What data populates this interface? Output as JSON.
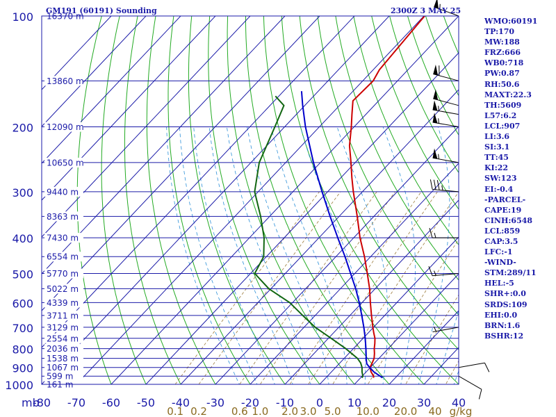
{
  "header": {
    "station": "GM191 (60191) Sounding",
    "time": "2300Z  3 MAY 25"
  },
  "stats": [
    "WMO:60191",
    "TP:170",
    "MW:188",
    "FRZ:666",
    "WB0:718",
    "PW:0.87",
    "RH:50.6",
    "MAXT:22.3",
    "TH:5609",
    "L57:6.2",
    "LCL:907",
    "LI:3.6",
    "SI:3.1",
    "TT:45",
    "KI:22",
    "SW:123",
    "EI:-0.4",
    "-PARCEL-",
    "CAPE:19",
    "CINH:6548",
    "LCL:859",
    "CAP:3.5",
    "LFC:-1",
    "-WIND-",
    "STM:289/11",
    "HEL:-5",
    "SHR+:0.0",
    "SRDS:109",
    "EHI:0.0",
    "BRN:1.6",
    "BSHR:12"
  ],
  "colors": {
    "isobar": "#1a1aa8",
    "isotherm": "#1a1aa8",
    "dry_adiabat": "#22aa22",
    "moist_adiabat": "#2a8fd8",
    "mixing_ratio": "#9a7a3a",
    "temperature": "#cc0000",
    "dewpoint": "#116611",
    "parcel": "#0000cc",
    "text": "#1a1aa8"
  },
  "chart_data": {
    "type": "line",
    "title": "",
    "xlabel": "",
    "ylabel": "mb",
    "y_scale": "log-pressure",
    "ylim": [
      1000,
      100
    ],
    "xlim_at_1000mb": [
      -80,
      40
    ],
    "pressure_ticks": [
      100,
      200,
      300,
      400,
      500,
      600,
      700,
      800,
      900,
      1000
    ],
    "temperature_ticks": [
      -80,
      -70,
      -60,
      -50,
      -40,
      -30,
      -20,
      -10,
      0,
      10,
      20,
      30,
      40
    ],
    "temperature_tick_labels": [
      "-80",
      "-70",
      "-60",
      "-50",
      "-40",
      "-30",
      "-20",
      "-10",
      "0",
      "10",
      "20",
      "30",
      "40"
    ],
    "height_levels": [
      {
        "p": 100,
        "label": "16370 m"
      },
      {
        "p": 150,
        "label": "13860 m"
      },
      {
        "p": 200,
        "label": "12090 m"
      },
      {
        "p": 250,
        "label": "10650 m"
      },
      {
        "p": 300,
        "label": "9440 m"
      },
      {
        "p": 350,
        "label": "8363 m"
      },
      {
        "p": 400,
        "label": "7430 m"
      },
      {
        "p": 450,
        "label": "6554 m"
      },
      {
        "p": 500,
        "label": "5770 m"
      },
      {
        "p": 550,
        "label": "5022 m"
      },
      {
        "p": 600,
        "label": "4339 m"
      },
      {
        "p": 650,
        "label": "3711 m"
      },
      {
        "p": 700,
        "label": "3129 m"
      },
      {
        "p": 750,
        "label": "2554 m"
      },
      {
        "p": 800,
        "label": "2036 m"
      },
      {
        "p": 850,
        "label": "1538 m"
      },
      {
        "p": 900,
        "label": "1067 m"
      },
      {
        "p": 950,
        "label": "599 m"
      },
      {
        "p": 1000,
        "label": "161 m"
      }
    ],
    "mixing_ratio_labels": [
      "0.1",
      "0.2",
      "0.6",
      "1.0",
      "2.0",
      "3.0",
      "5.0",
      "10.0",
      "20.0",
      "40",
      "g/kg"
    ],
    "mixing_ratio_values": [
      0.1,
      0.2,
      0.6,
      1.0,
      2.0,
      3.0,
      5.0,
      10.0,
      20.0,
      40.0
    ],
    "series": [
      {
        "key": "temperature",
        "points": [
          [
            960,
            13.7
          ],
          [
            950,
            13.3
          ],
          [
            925,
            11.4
          ],
          [
            900,
            9.9
          ],
          [
            875,
            9.3
          ],
          [
            850,
            8.6
          ],
          [
            825,
            7.4
          ],
          [
            800,
            6.0
          ],
          [
            775,
            4.8
          ],
          [
            750,
            3.4
          ],
          [
            725,
            1.6
          ],
          [
            700,
            -0.2
          ],
          [
            650,
            -3.8
          ],
          [
            600,
            -7.6
          ],
          [
            550,
            -11.6
          ],
          [
            500,
            -16.4
          ],
          [
            450,
            -21.8
          ],
          [
            400,
            -28.2
          ],
          [
            350,
            -34.8
          ],
          [
            300,
            -42.6
          ],
          [
            275,
            -46.8
          ],
          [
            250,
            -51.2
          ],
          [
            225,
            -56.2
          ],
          [
            200,
            -60.8
          ],
          [
            185,
            -64.0
          ],
          [
            170,
            -67.4
          ],
          [
            150,
            -67.0
          ],
          [
            140,
            -68.2
          ],
          [
            100,
            -69.8
          ]
        ]
      },
      {
        "key": "dewpoint",
        "points": [
          [
            960,
            10.4
          ],
          [
            950,
            10.2
          ],
          [
            925,
            8.8
          ],
          [
            900,
            7.6
          ],
          [
            875,
            6.0
          ],
          [
            850,
            3.8
          ],
          [
            800,
            -2.2
          ],
          [
            750,
            -9.2
          ],
          [
            700,
            -16.8
          ],
          [
            650,
            -23.6
          ],
          [
            600,
            -30.8
          ],
          [
            550,
            -40.6
          ],
          [
            500,
            -48.8
          ],
          [
            450,
            -50.8
          ],
          [
            400,
            -55.8
          ],
          [
            350,
            -62.6
          ],
          [
            300,
            -71.0
          ],
          [
            250,
            -77.6
          ],
          [
            200,
            -82.8
          ],
          [
            175,
            -86.0
          ],
          [
            165,
            -91.0
          ]
        ]
      },
      {
        "key": "parcel",
        "points": [
          [
            960,
            16.3
          ],
          [
            925,
            12.2
          ],
          [
            900,
            9.8
          ],
          [
            880,
            8.0
          ],
          [
            859,
            6.8
          ],
          [
            800,
            3.6
          ],
          [
            750,
            0.6
          ],
          [
            700,
            -2.8
          ],
          [
            650,
            -6.6
          ],
          [
            600,
            -10.8
          ],
          [
            550,
            -15.6
          ],
          [
            500,
            -21.2
          ],
          [
            450,
            -27.4
          ],
          [
            400,
            -34.6
          ],
          [
            350,
            -42.6
          ],
          [
            300,
            -51.6
          ],
          [
            250,
            -62.0
          ],
          [
            200,
            -74.0
          ],
          [
            175,
            -80.6
          ],
          [
            160,
            -84.8
          ]
        ]
      }
    ],
    "wind_barbs": [
      {
        "p": 100,
        "dir": 290,
        "spd": 55
      },
      {
        "p": 150,
        "dir": 285,
        "spd": 60
      },
      {
        "p": 175,
        "dir": 285,
        "spd": 50
      },
      {
        "p": 185,
        "dir": 280,
        "spd": 55
      },
      {
        "p": 200,
        "dir": 280,
        "spd": 55
      },
      {
        "p": 250,
        "dir": 280,
        "spd": 55
      },
      {
        "p": 300,
        "dir": 275,
        "spd": 35
      },
      {
        "p": 400,
        "dir": 270,
        "spd": 15
      },
      {
        "p": 500,
        "dir": 265,
        "spd": 15
      },
      {
        "p": 700,
        "dir": 260,
        "spd": 5
      },
      {
        "p": 900,
        "dir": 80,
        "spd": 10
      },
      {
        "p": 950,
        "dir": 120,
        "spd": 10
      }
    ]
  }
}
